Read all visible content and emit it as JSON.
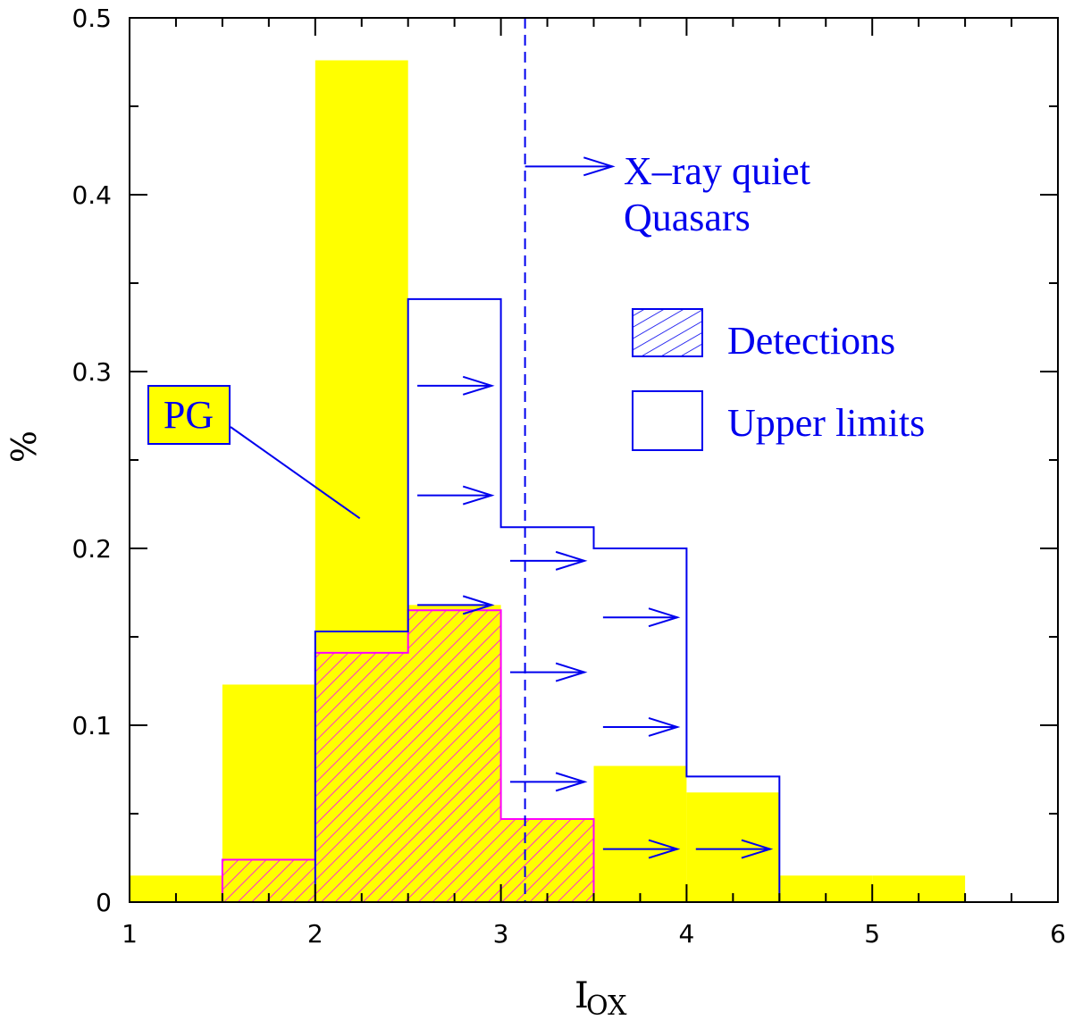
{
  "chart_data": {
    "type": "bar",
    "xlabel": "I",
    "xlabel_subscript": "OX",
    "ylabel": "%",
    "xlim": [
      1,
      6
    ],
    "ylim": [
      0,
      0.5
    ],
    "x_ticks": [
      "1",
      "2",
      "3",
      "4",
      "5",
      "6"
    ],
    "y_ticks": [
      "0",
      "0.1",
      "0.2",
      "0.3",
      "0.4",
      "0.5"
    ],
    "bin_edges": [
      1,
      1.5,
      2,
      2.5,
      3,
      3.5,
      4,
      4.5,
      5,
      5.5
    ],
    "series": [
      {
        "name": "PG",
        "style": "filled",
        "color": "#ffff00",
        "bins": [
          {
            "x0": 1.0,
            "x1": 1.5,
            "y": 0.015
          },
          {
            "x0": 1.5,
            "x1": 2.0,
            "y": 0.123
          },
          {
            "x0": 2.0,
            "x1": 2.5,
            "y": 0.476
          },
          {
            "x0": 2.5,
            "x1": 3.0,
            "y": 0.168
          },
          {
            "x0": 3.0,
            "x1": 3.5,
            "y": 0.046
          },
          {
            "x0": 3.5,
            "x1": 4.0,
            "y": 0.077
          },
          {
            "x0": 4.0,
            "x1": 4.5,
            "y": 0.062
          },
          {
            "x0": 4.5,
            "x1": 5.0,
            "y": 0.015
          },
          {
            "x0": 5.0,
            "x1": 5.5,
            "y": 0.015
          }
        ]
      },
      {
        "name": "Detections",
        "style": "hatched",
        "color": "#ff00ff",
        "bins": [
          {
            "x0": 1.5,
            "x1": 2.0,
            "y": 0.024
          },
          {
            "x0": 2.0,
            "x1": 2.5,
            "y": 0.141
          },
          {
            "x0": 2.5,
            "x1": 3.0,
            "y": 0.165
          },
          {
            "x0": 3.0,
            "x1": 3.5,
            "y": 0.047
          }
        ]
      },
      {
        "name": "Upper limits",
        "style": "outline",
        "color": "#0000ee",
        "bins": [
          {
            "x0": 2.0,
            "x1": 2.5,
            "y": 0.153
          },
          {
            "x0": 2.5,
            "x1": 3.0,
            "y": 0.341
          },
          {
            "x0": 3.0,
            "x1": 3.5,
            "y": 0.212
          },
          {
            "x0": 3.5,
            "x1": 4.0,
            "y": 0.2
          },
          {
            "x0": 4.0,
            "x1": 4.5,
            "y": 0.071
          }
        ]
      }
    ],
    "upper_limit_arrows": [
      {
        "x0": 2.55,
        "x1": 2.95,
        "y": 0.292
      },
      {
        "x0": 2.55,
        "x1": 2.95,
        "y": 0.23
      },
      {
        "x0": 2.55,
        "x1": 2.95,
        "y": 0.168
      },
      {
        "x0": 3.05,
        "x1": 3.45,
        "y": 0.193
      },
      {
        "x0": 3.05,
        "x1": 3.45,
        "y": 0.13
      },
      {
        "x0": 3.05,
        "x1": 3.45,
        "y": 0.068
      },
      {
        "x0": 3.55,
        "x1": 3.95,
        "y": 0.161
      },
      {
        "x0": 3.55,
        "x1": 3.95,
        "y": 0.099
      },
      {
        "x0": 3.55,
        "x1": 3.95,
        "y": 0.03
      },
      {
        "x0": 4.05,
        "x1": 4.45,
        "y": 0.03
      }
    ],
    "threshold": {
      "x": 3.13,
      "style": "dashed",
      "arrow": {
        "x0": 3.13,
        "x1": 3.6,
        "y": 0.416
      },
      "label_lines": [
        "X–ray quiet",
        "Quasars"
      ]
    },
    "legend": {
      "position": "right",
      "entries": [
        {
          "label": "Detections",
          "style": "hatched"
        },
        {
          "label": "Upper limits",
          "style": "outline"
        }
      ]
    },
    "annotation_pg": {
      "text": "PG",
      "pointer_target": {
        "x": 2.24,
        "y": 0.217
      }
    },
    "grid": false
  }
}
